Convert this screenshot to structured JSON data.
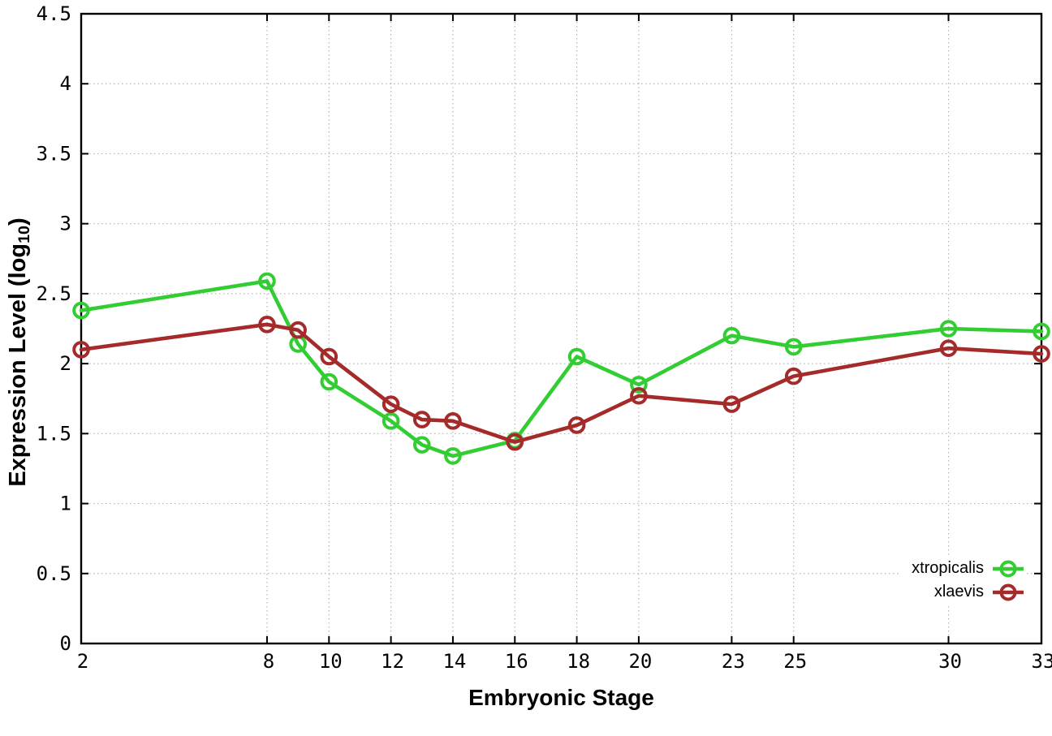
{
  "figure": {
    "xlabel": "Embryonic Stage",
    "ylabel": {
      "main": "Expression Level (log",
      "sub": "10",
      "end": ")"
    }
  },
  "chart_data": {
    "type": "line",
    "x": [
      2,
      8,
      9,
      10,
      12,
      13,
      14,
      16,
      18,
      20,
      23,
      25,
      30,
      33
    ],
    "series": [
      {
        "name": "xtropicalis",
        "color": "#32cd32",
        "values": [
          2.38,
          2.59,
          2.14,
          1.87,
          1.59,
          1.42,
          1.34,
          1.45,
          2.05,
          1.85,
          2.2,
          2.12,
          2.25,
          2.23
        ]
      },
      {
        "name": "xlaevis",
        "color": "#a52a2a",
        "values": [
          2.1,
          2.28,
          2.24,
          2.05,
          1.71,
          1.6,
          1.59,
          1.44,
          1.56,
          1.77,
          1.71,
          1.91,
          2.11,
          2.07
        ]
      }
    ],
    "xlabel": "Embryonic Stage",
    "ylabel": "Expression Level (log10)",
    "xlim": [
      2,
      33
    ],
    "ylim": [
      0,
      4.5
    ],
    "xticks": [
      2,
      8,
      10,
      12,
      14,
      16,
      18,
      20,
      23,
      25,
      30,
      33
    ],
    "yticks": [
      0,
      0.5,
      1,
      1.5,
      2,
      2.5,
      3,
      3.5,
      4,
      4.5
    ],
    "grid": true,
    "legend_position": "bottom-right",
    "marker": "open-circle",
    "grid_color": "#b5b5b5",
    "border_color": "#000000"
  }
}
